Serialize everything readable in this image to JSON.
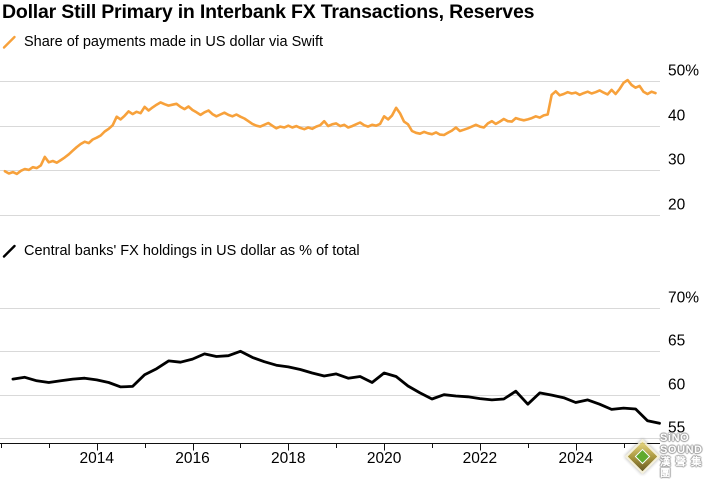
{
  "page": {
    "title": "Dollar Still Primary in Interbank FX Transactions, Reserves"
  },
  "colors": {
    "swift_line": "#F7A13B",
    "cofer_line": "#000000",
    "gridline": "#D9D9D9",
    "axis": "#111111",
    "text": "#000000"
  },
  "watermark": {
    "brand": "SiNO SOUND",
    "brand_cn": "漢聲集團"
  },
  "x_axis": {
    "tick_years": [
      2012,
      2013,
      2014,
      2015,
      2016,
      2017,
      2018,
      2019,
      2020,
      2021,
      2022,
      2023,
      2024,
      2025
    ],
    "labeled_years": [
      2014,
      2016,
      2018,
      2020,
      2022,
      2024
    ],
    "labels": [
      "2014",
      "2016",
      "2018",
      "2020",
      "2022",
      "2024"
    ]
  },
  "chart_data": [
    {
      "id": "swift-usd-share",
      "type": "line",
      "legend": "Share of payments made in US dollar via Swift",
      "color": "#F7A13B",
      "unit": "%",
      "frequency": "monthly",
      "y_ticks": [
        50,
        40,
        30,
        20
      ],
      "y_tick_labels": [
        "50%",
        "40",
        "30",
        "20"
      ],
      "ylim": [
        18,
        52
      ],
      "x_start": 2012.0833,
      "x_step": 0.08333,
      "x_range": [
        2012,
        2025.78
      ],
      "grid": true,
      "legend_position": "top-left",
      "values": [
        29.8,
        29.3,
        29.6,
        29.2,
        29.9,
        30.3,
        30.1,
        30.7,
        30.5,
        31.1,
        33.0,
        31.8,
        32.1,
        31.7,
        32.3,
        32.9,
        33.6,
        34.4,
        35.2,
        35.9,
        36.4,
        36.1,
        36.9,
        37.3,
        37.8,
        38.7,
        39.3,
        40.1,
        42.0,
        41.4,
        42.2,
        43.2,
        42.6,
        43.1,
        42.8,
        44.2,
        43.4,
        44.1,
        44.7,
        45.2,
        44.8,
        44.5,
        44.7,
        44.9,
        44.2,
        43.7,
        44.3,
        43.5,
        43.0,
        42.4,
        43.0,
        43.4,
        42.6,
        42.1,
        42.5,
        42.9,
        42.4,
        42.1,
        42.5,
        42.0,
        41.6,
        41.0,
        40.4,
        40.0,
        39.8,
        40.2,
        40.6,
        40.0,
        39.4,
        39.8,
        39.6,
        40.0,
        39.6,
        39.9,
        39.5,
        39.2,
        39.6,
        39.3,
        39.8,
        40.1,
        41.0,
        39.9,
        40.3,
        40.5,
        39.9,
        40.2,
        39.6,
        39.9,
        40.3,
        40.7,
        40.1,
        39.8,
        40.2,
        40.0,
        40.4,
        42.1,
        41.4,
        42.3,
        44.0,
        42.8,
        40.9,
        40.3,
        38.8,
        38.4,
        38.2,
        38.6,
        38.3,
        38.1,
        38.5,
        38.0,
        37.9,
        38.4,
        38.9,
        39.6,
        38.8,
        39.1,
        39.4,
        39.8,
        40.2,
        39.8,
        39.6,
        40.5,
        41.0,
        40.4,
        40.9,
        41.5,
        41.0,
        40.9,
        41.7,
        41.4,
        41.2,
        41.4,
        41.7,
        42.1,
        41.8,
        42.3,
        42.5,
        46.9,
        47.7,
        46.8,
        47.1,
        47.5,
        47.2,
        47.4,
        46.9,
        47.3,
        47.6,
        47.2,
        47.5,
        47.9,
        47.4,
        47.0,
        48.0,
        47.1,
        48.2,
        49.6,
        50.2,
        49.1,
        48.5,
        48.9,
        47.6,
        47.1,
        47.6,
        47.3
      ]
    },
    {
      "id": "usd-reserve-share",
      "type": "line",
      "legend": "Central banks' FX holdings in US dollar as % of total",
      "color": "#000000",
      "unit": "%",
      "frequency": "quarterly",
      "y_ticks": [
        70,
        65,
        60,
        55
      ],
      "y_tick_labels": [
        "70%",
        "65",
        "60",
        "55"
      ],
      "ylim": [
        54,
        72
      ],
      "x_start": 2012.25,
      "x_step": 0.25,
      "x_range": [
        2012,
        2025.78
      ],
      "grid": true,
      "legend_position": "top-left",
      "values": [
        61.8,
        62.0,
        61.6,
        61.4,
        61.6,
        61.8,
        61.9,
        61.7,
        61.4,
        60.9,
        60.95,
        62.3,
        63.0,
        63.9,
        63.75,
        64.1,
        64.7,
        64.4,
        64.5,
        65.0,
        64.3,
        63.8,
        63.4,
        63.2,
        62.9,
        62.5,
        62.15,
        62.4,
        61.9,
        62.1,
        61.4,
        62.5,
        62.1,
        61.0,
        60.2,
        59.5,
        60.0,
        59.85,
        59.75,
        59.55,
        59.4,
        59.5,
        60.4,
        58.9,
        60.2,
        59.95,
        59.65,
        59.1,
        59.4,
        58.9,
        58.3,
        58.45,
        58.35,
        57.0,
        56.7
      ]
    }
  ]
}
